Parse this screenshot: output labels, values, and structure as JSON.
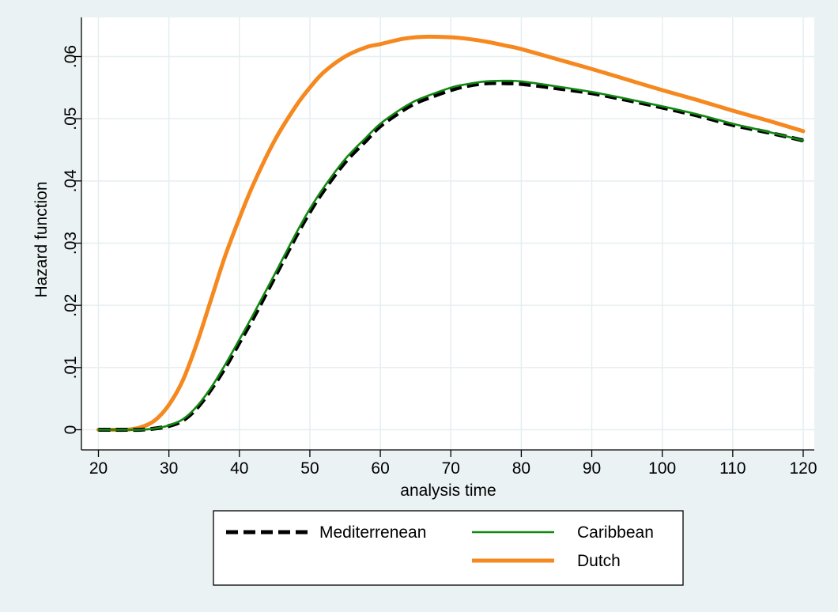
{
  "chart_data": {
    "type": "line",
    "xlabel": "analysis time",
    "ylabel": "Hazard function",
    "xlim": [
      20,
      120
    ],
    "ylim": [
      0,
      0.065
    ],
    "x_ticks": [
      20,
      30,
      40,
      50,
      60,
      70,
      80,
      90,
      100,
      110,
      120
    ],
    "x_tick_labels": [
      "20",
      "30",
      "40",
      "50",
      "60",
      "70",
      "80",
      "90",
      "100",
      "110",
      "120"
    ],
    "y_ticks": [
      0,
      0.01,
      0.02,
      0.03,
      0.04,
      0.05,
      0.06
    ],
    "y_tick_labels": [
      "0",
      ".01",
      ".02",
      ".03",
      ".04",
      ".05",
      ".06"
    ],
    "grid": true,
    "legend_position": "bottom",
    "x": [
      20,
      22,
      24,
      26,
      28,
      30,
      32,
      34,
      36,
      38,
      40,
      42,
      45,
      48,
      50,
      52,
      55,
      58,
      60,
      63,
      65,
      67,
      70,
      72,
      75,
      78,
      80,
      85,
      90,
      95,
      100,
      105,
      110,
      115,
      120
    ],
    "series": [
      {
        "name": "Mediterrenean",
        "color": "#000000",
        "style": "dashed",
        "values": [
          0,
          0,
          0,
          0,
          0.0002,
          0.0006,
          0.0015,
          0.0035,
          0.0065,
          0.01,
          0.014,
          0.018,
          0.0245,
          0.031,
          0.035,
          0.0385,
          0.043,
          0.0465,
          0.0488,
          0.0512,
          0.0525,
          0.0534,
          0.0546,
          0.0552,
          0.0557,
          0.0557,
          0.0556,
          0.0549,
          0.0541,
          0.053,
          0.0518,
          0.0505,
          0.049,
          0.0478,
          0.0465
        ]
      },
      {
        "name": "Caribbean",
        "color": "#118811",
        "style": "solid",
        "values": [
          0,
          0,
          0,
          0,
          0.0002,
          0.0007,
          0.0017,
          0.0038,
          0.0068,
          0.0105,
          0.0145,
          0.0186,
          0.025,
          0.0315,
          0.0355,
          0.039,
          0.0435,
          0.047,
          0.0492,
          0.0516,
          0.0529,
          0.0538,
          0.055,
          0.0555,
          0.056,
          0.0561,
          0.056,
          0.0552,
          0.0543,
          0.0532,
          0.052,
          0.0507,
          0.0492,
          0.0479,
          0.0465
        ]
      },
      {
        "name": "Dutch",
        "color": "#f5881f",
        "style": "solid-thick",
        "values": [
          0,
          0,
          0,
          0.0004,
          0.0015,
          0.004,
          0.008,
          0.014,
          0.021,
          0.028,
          0.034,
          0.0395,
          0.0465,
          0.052,
          0.055,
          0.0575,
          0.06,
          0.0615,
          0.062,
          0.0628,
          0.0631,
          0.0632,
          0.0631,
          0.0629,
          0.0624,
          0.0617,
          0.0612,
          0.0596,
          0.058,
          0.0563,
          0.0546,
          0.053,
          0.0513,
          0.0497,
          0.048
        ]
      }
    ]
  }
}
